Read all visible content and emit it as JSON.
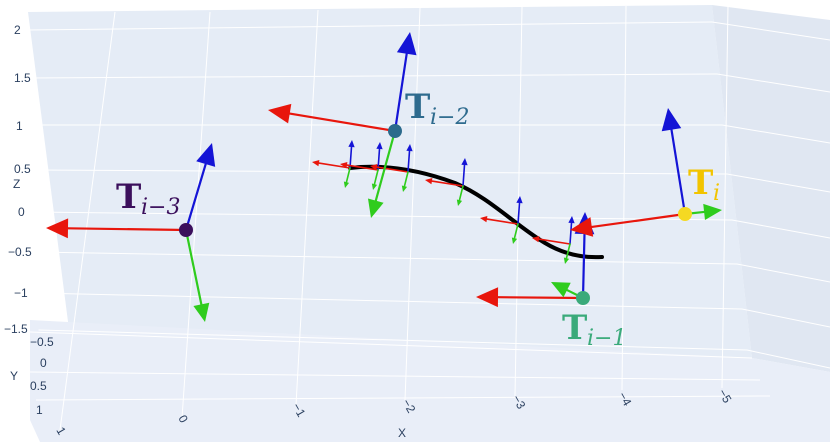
{
  "chart_data": {
    "type": "scatter3d",
    "axes": {
      "x": {
        "title": "X",
        "ticks": [
          "1",
          "0",
          "−1",
          "−2",
          "−3",
          "−4",
          "−5"
        ]
      },
      "y": {
        "title": "Y",
        "ticks": [
          "−0.5",
          "0",
          "0.5",
          "1"
        ]
      },
      "z": {
        "title": "Z",
        "ticks": [
          "2",
          "1.5",
          "1",
          "0.5",
          "0",
          "−0.5",
          "−1",
          "−1.5"
        ]
      }
    },
    "poses": [
      {
        "id": "T_i-3",
        "label": "T",
        "sub": "i−3",
        "color": "#3b0f5c",
        "label_color": "#3b0f5c"
      },
      {
        "id": "T_i-2",
        "label": "T",
        "sub": "i−2",
        "color": "#2b6a8c",
        "label_color": "#2e6b8e"
      },
      {
        "id": "T_i-1",
        "label": "T",
        "sub": "i−1",
        "color": "#3aaa7a",
        "label_color": "#3aaa7a"
      },
      {
        "id": "T_i",
        "label": "T",
        "sub": "i",
        "color": "#f5d922",
        "label_color": "#f2c400"
      }
    ],
    "trajectory": {
      "color": "#000000"
    },
    "frame_axis_colors": {
      "x": "#e8160c",
      "y": "#2fcc1d",
      "z": "#1414d6"
    },
    "scene_background": "#e5ecf6",
    "grid_color": "#ffffff"
  }
}
